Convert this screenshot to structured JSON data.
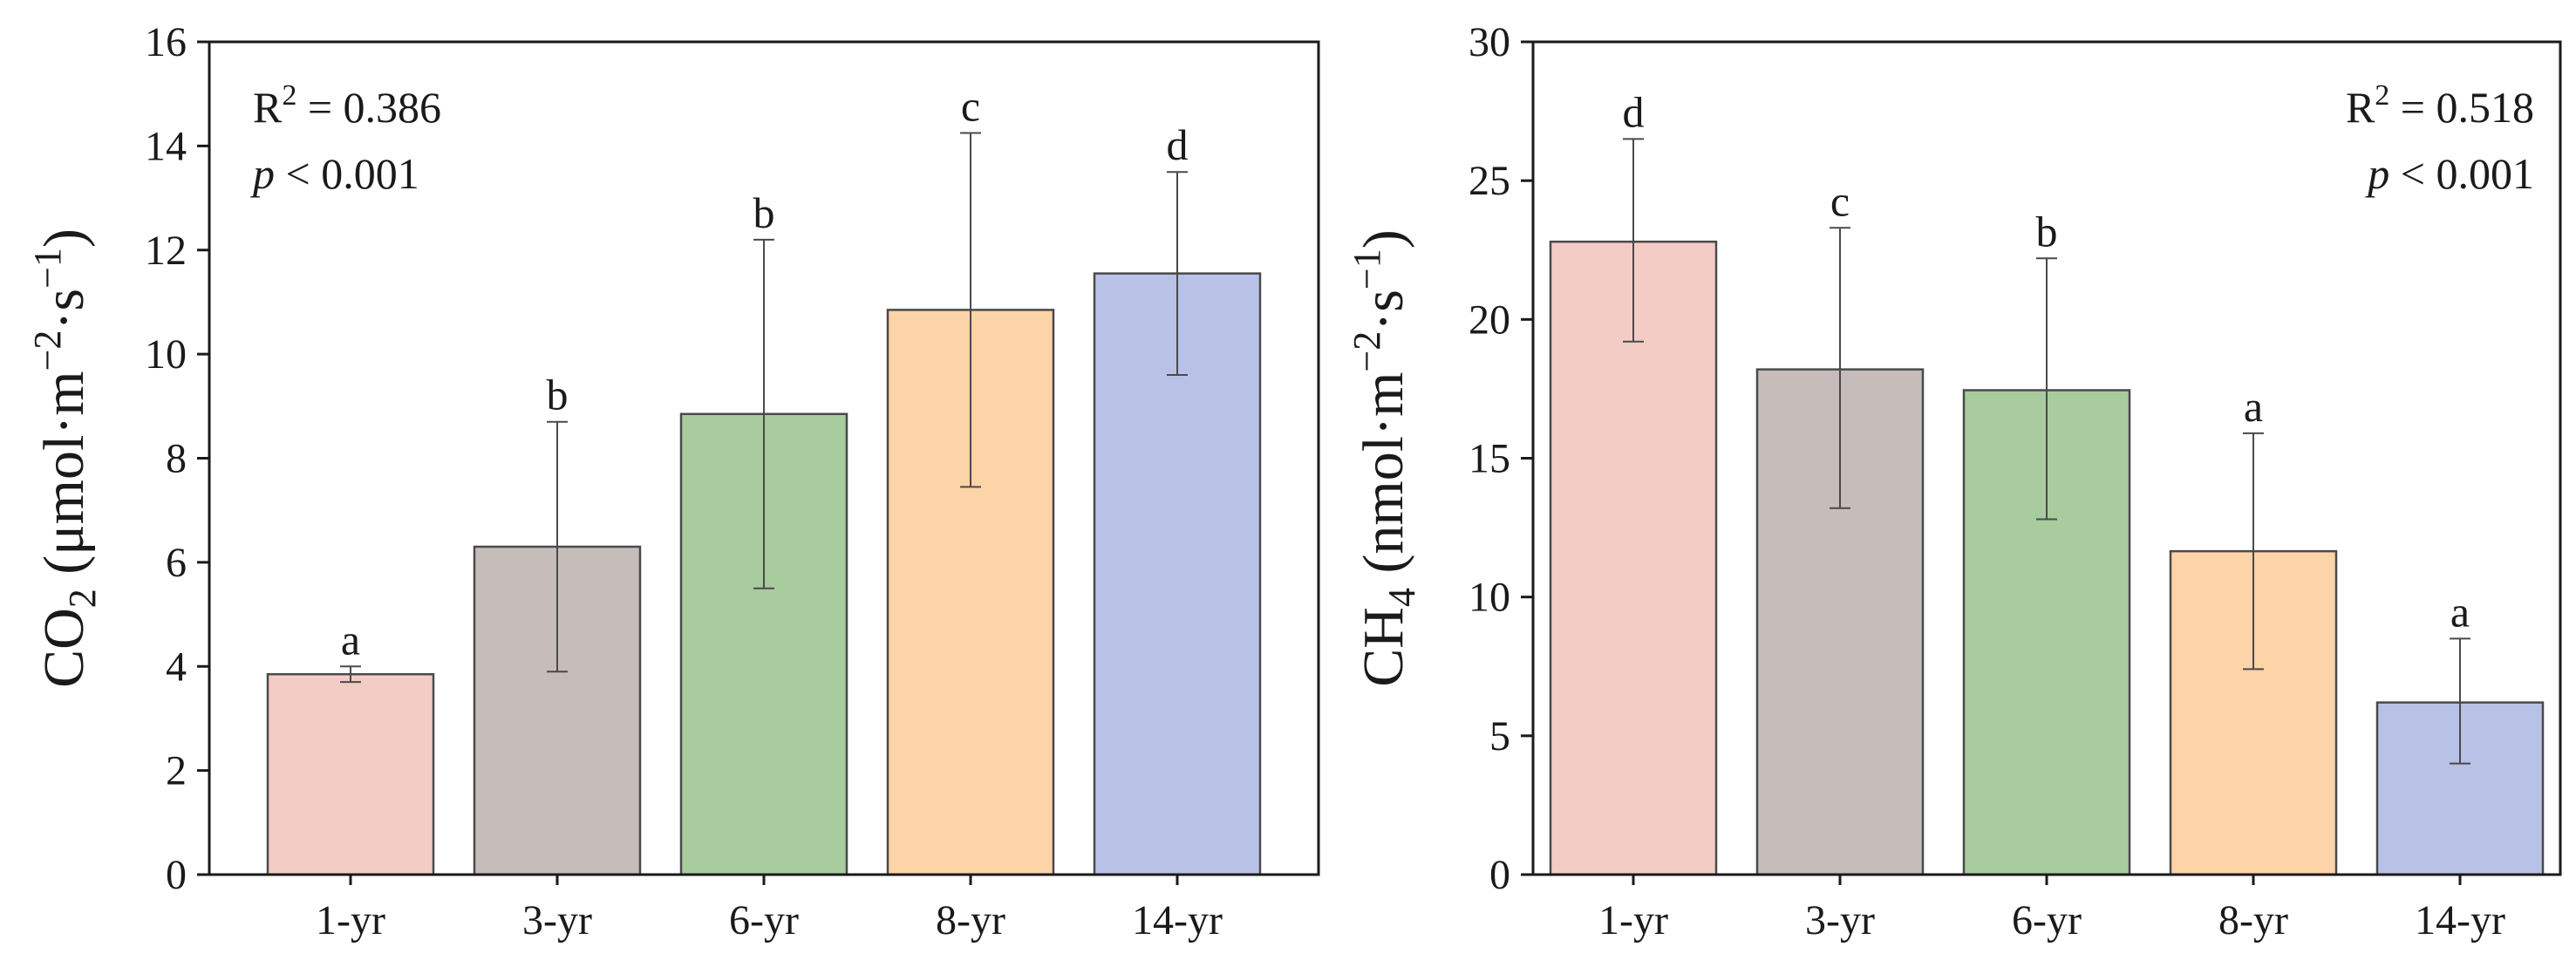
{
  "chart_data": [
    {
      "type": "bar",
      "ylabel_main": "CO",
      "ylabel_main_sub": "2",
      "ylabel_unit": "(μmol·m",
      "ylabel_sup1": "−2",
      "ylabel_mid": "·s",
      "ylabel_sup2": "−1",
      "ylabel_close": ")",
      "ylim": [
        0,
        16
      ],
      "yticks": [
        "0",
        "2",
        "4",
        "6",
        "8",
        "10",
        "12",
        "14",
        "16"
      ],
      "ytick_values": [
        0,
        2,
        4,
        6,
        8,
        10,
        12,
        14,
        16
      ],
      "categories": [
        "1-yr",
        "3-yr",
        "6-yr",
        "8-yr",
        "14-yr"
      ],
      "values": [
        3.85,
        6.3,
        8.85,
        10.85,
        11.55
      ],
      "err_low": [
        3.7,
        3.9,
        5.5,
        7.45,
        9.6
      ],
      "err_high": [
        4.0,
        8.7,
        12.2,
        14.25,
        13.5
      ],
      "letters": [
        "a",
        "b",
        "b",
        "c",
        "d"
      ],
      "colors": [
        "#f4ccc6",
        "#c6bcba",
        "#a8cc9e",
        "#fdd3a8",
        "#b8c1e6"
      ],
      "stats": {
        "r2_label": "R",
        "r2_sup": "2",
        "r2_value": " = 0.386",
        "p_label": "p",
        "p_value": " < 0.001",
        "position": "top-left"
      }
    },
    {
      "type": "bar",
      "ylabel_main": "CH",
      "ylabel_main_sub": "4",
      "ylabel_unit": "(nmol·m",
      "ylabel_sup1": "−2",
      "ylabel_mid": "·s",
      "ylabel_sup2": "−1",
      "ylabel_close": ")",
      "ylim": [
        0,
        30
      ],
      "yticks": [
        "0",
        "5",
        "10",
        "15",
        "20",
        "25",
        "30"
      ],
      "ytick_values": [
        0,
        5,
        10,
        15,
        20,
        25,
        30
      ],
      "categories": [
        "1-yr",
        "3-yr",
        "6-yr",
        "8-yr",
        "14-yr"
      ],
      "values": [
        22.8,
        18.2,
        17.45,
        11.65,
        6.2
      ],
      "err_low": [
        19.2,
        13.2,
        12.8,
        7.4,
        4.0
      ],
      "err_high": [
        26.5,
        23.3,
        22.2,
        15.9,
        8.5
      ],
      "letters": [
        "d",
        "c",
        "b",
        "a",
        "a"
      ],
      "colors": [
        "#f4ccc6",
        "#c6bcba",
        "#a8cc9e",
        "#fdd3a8",
        "#b8c1e6"
      ],
      "stats": {
        "r2_label": "R",
        "r2_sup": "2",
        "r2_value": " = 0.518",
        "p_label": "p",
        "p_value": " < 0.001",
        "position": "top-right"
      }
    }
  ]
}
